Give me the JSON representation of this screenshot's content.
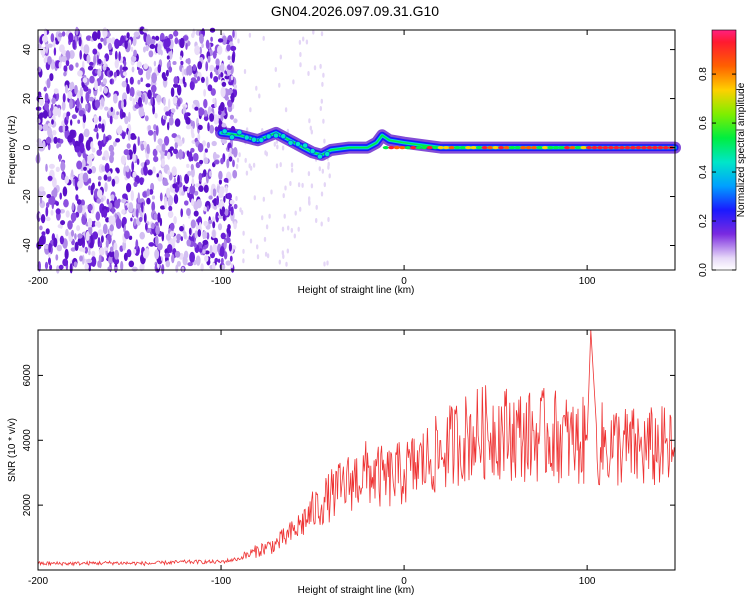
{
  "chart_data": [
    {
      "type": "heatmap",
      "title": "GN04.2026.097.09.31.G10",
      "xlabel": "Height of straight line (km)",
      "ylabel": "Frequency (Hz)",
      "xlim": [
        -200,
        148
      ],
      "ylim": [
        -50,
        48
      ],
      "xticks": [
        -200,
        -100,
        0,
        100
      ],
      "yticks": [
        -40,
        -20,
        0,
        20,
        40
      ],
      "colorbar": {
        "label": "Normalized spectral amplitude",
        "range": [
          0,
          0.98
        ],
        "ticks": [
          0.0,
          0.2,
          0.4,
          0.6,
          0.8
        ]
      },
      "ridge": [
        {
          "x": -100,
          "y": 6
        },
        {
          "x": -90,
          "y": 5
        },
        {
          "x": -80,
          "y": 3
        },
        {
          "x": -70,
          "y": 6
        },
        {
          "x": -65,
          "y": 4
        },
        {
          "x": -60,
          "y": 2
        },
        {
          "x": -55,
          "y": 0
        },
        {
          "x": -50,
          "y": -2
        },
        {
          "x": -45,
          "y": -3
        },
        {
          "x": -40,
          "y": -1
        },
        {
          "x": -30,
          "y": 0
        },
        {
          "x": -20,
          "y": 0
        },
        {
          "x": -15,
          "y": 2
        },
        {
          "x": -12,
          "y": 5
        },
        {
          "x": -8,
          "y": 3
        },
        {
          "x": 0,
          "y": 2
        },
        {
          "x": 20,
          "y": 0
        },
        {
          "x": 60,
          "y": 0
        },
        {
          "x": 96,
          "y": 0
        },
        {
          "x": 100,
          "y": 0
        },
        {
          "x": 148,
          "y": 0
        }
      ]
    },
    {
      "type": "line",
      "xlabel": "Height of straight line (km)",
      "ylabel": "SNR (10 * v/v)",
      "xlim": [
        -200,
        148
      ],
      "ylim": [
        0,
        7400
      ],
      "xticks": [
        -200,
        -100,
        0,
        100
      ],
      "yticks": [
        2000,
        4000,
        6000
      ],
      "color": "#ee3333",
      "x": [
        -200,
        -180,
        -160,
        -140,
        -120,
        -100,
        -90,
        -80,
        -70,
        -60,
        -50,
        -40,
        -30,
        -20,
        -10,
        0,
        10,
        20,
        30,
        40,
        50,
        60,
        70,
        80,
        90,
        95,
        100,
        102,
        105,
        110,
        120,
        130,
        140,
        148
      ],
      "y": [
        200,
        200,
        220,
        200,
        250,
        250,
        350,
        600,
        800,
        1200,
        1800,
        2300,
        2700,
        3000,
        2800,
        3000,
        3300,
        3600,
        4000,
        4200,
        4300,
        4200,
        4100,
        4200,
        4000,
        3900,
        4000,
        7400,
        3800,
        3900,
        3800,
        3700,
        3800,
        3600
      ]
    }
  ]
}
